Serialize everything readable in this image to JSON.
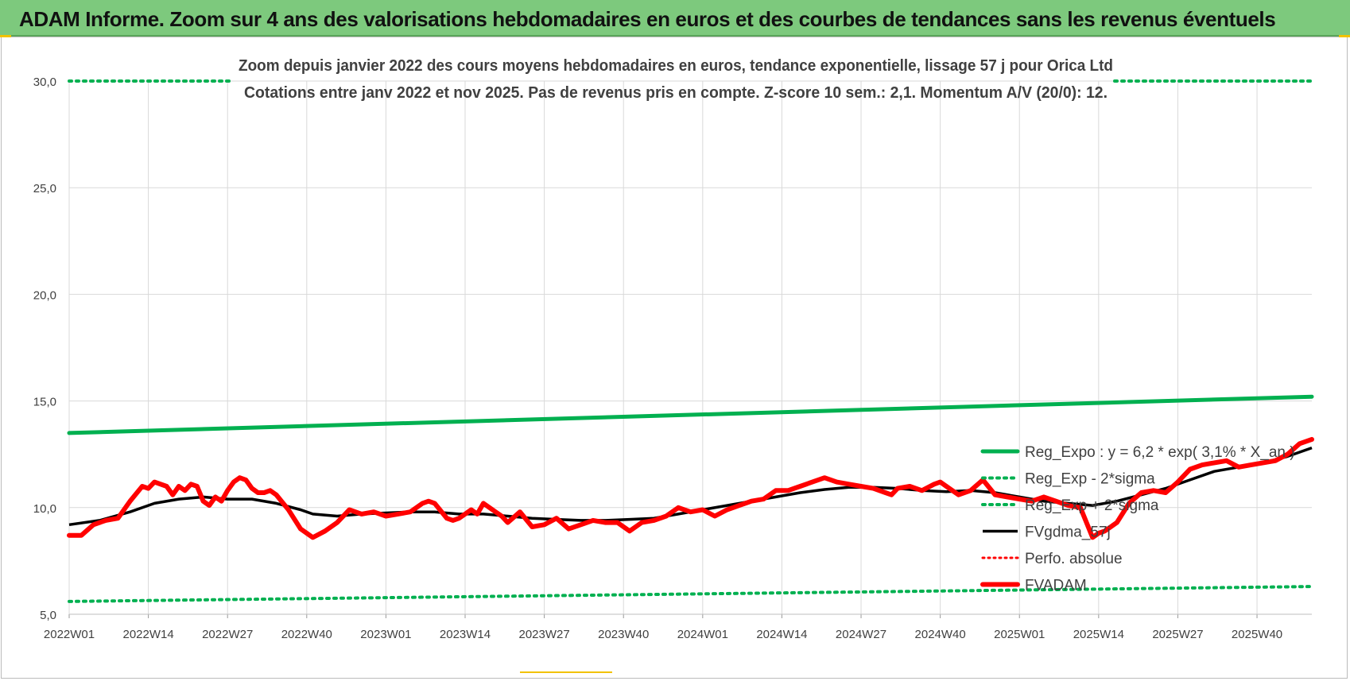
{
  "banner": {
    "title": "ADAM Informe. Zoom sur 4 ans des valorisations hebdomadaires en euros et des courbes de tendances sans les revenus éventuels"
  },
  "colors": {
    "banner_bg": "#7dc97d",
    "trend_green": "#00b050",
    "price_red": "#ff0000",
    "ma_black": "#000000",
    "grid": "#d9d9d9"
  },
  "chart_data": {
    "type": "line",
    "title_line1": "Zoom depuis janvier 2022 des cours moyens hebdomadaires en euros, tendance exponentielle, lissage 57 j pour Orica Ltd",
    "title_line2": "Cotations entre janv 2022 et nov 2025. Pas de revenus pris en compte. Z-score 10 sem.: 2,1. Momentum A/V (20/0): 12.",
    "xlabel": "",
    "ylabel": "",
    "ylim": [
      5,
      30
    ],
    "yticks": [
      "5,0",
      "10,0",
      "15,0",
      "20,0",
      "25,0",
      "30,0"
    ],
    "ytick_values": [
      5,
      10,
      15,
      20,
      25,
      30
    ],
    "xticks": [
      "2022W01",
      "2022W14",
      "2022W27",
      "2022W40",
      "2023W01",
      "2023W14",
      "2023W27",
      "2023W40",
      "2024W01",
      "2024W14",
      "2024W27",
      "2024W40",
      "2025W01",
      "2025W14",
      "2025W27",
      "2025W40"
    ],
    "xtick_weeks": [
      0,
      13,
      26,
      39,
      52,
      65,
      78,
      91,
      104,
      117,
      130,
      143,
      156,
      169,
      182,
      195
    ],
    "n_weeks": 205,
    "grid": true,
    "legend_position": "right",
    "series": [
      {
        "name": "Reg_Expo : y = 6,2 * exp( 3,1% * X_an )",
        "style": "solid-green",
        "x": [
          0,
          204
        ],
        "values": [
          13.5,
          15.2
        ]
      },
      {
        "name": "Reg_Exp - 2*sigma",
        "style": "dotted-green",
        "x": [
          0,
          204
        ],
        "values": [
          5.6,
          6.3
        ]
      },
      {
        "name": "Reg_Exp + 2*sigma",
        "style": "dotted-green",
        "x": [
          0,
          204
        ],
        "values": [
          30.0,
          30.0
        ]
      },
      {
        "name": "FVgdma_57j",
        "style": "solid-black",
        "x": [
          0,
          5,
          10,
          14,
          18,
          22,
          26,
          30,
          34,
          38,
          40,
          44,
          48,
          52,
          56,
          60,
          64,
          68,
          72,
          76,
          80,
          84,
          88,
          92,
          96,
          100,
          104,
          108,
          112,
          116,
          120,
          124,
          128,
          132,
          136,
          140,
          144,
          148,
          152,
          156,
          160,
          164,
          168,
          172,
          176,
          180,
          184,
          188,
          192,
          196,
          200,
          204
        ],
        "values": [
          9.2,
          9.4,
          9.8,
          10.2,
          10.4,
          10.5,
          10.4,
          10.4,
          10.2,
          9.9,
          9.7,
          9.6,
          9.7,
          9.75,
          9.8,
          9.8,
          9.7,
          9.7,
          9.6,
          9.5,
          9.45,
          9.4,
          9.4,
          9.45,
          9.5,
          9.7,
          9.9,
          10.1,
          10.3,
          10.5,
          10.7,
          10.85,
          10.95,
          10.95,
          10.9,
          10.8,
          10.75,
          10.8,
          10.7,
          10.5,
          10.3,
          10.2,
          10.1,
          10.3,
          10.6,
          10.9,
          11.3,
          11.7,
          11.9,
          12.1,
          12.4,
          12.8
        ]
      },
      {
        "name": "Perfo. absolue",
        "style": "dotted-red",
        "x": [],
        "values": []
      },
      {
        "name": "FVADAM",
        "style": "solid-red-thick",
        "x": [
          0,
          2,
          4,
          6,
          8,
          10,
          12,
          13,
          14,
          16,
          17,
          18,
          19,
          20,
          21,
          22,
          23,
          24,
          25,
          26,
          27,
          28,
          29,
          30,
          31,
          32,
          33,
          34,
          36,
          38,
          39,
          40,
          42,
          44,
          46,
          48,
          50,
          52,
          54,
          56,
          58,
          59,
          60,
          62,
          63,
          64,
          66,
          67,
          68,
          70,
          71,
          72,
          74,
          76,
          78,
          80,
          82,
          84,
          86,
          88,
          90,
          92,
          94,
          96,
          98,
          100,
          102,
          104,
          106,
          108,
          110,
          112,
          114,
          116,
          118,
          120,
          122,
          124,
          126,
          128,
          130,
          132,
          134,
          135,
          136,
          138,
          140,
          142,
          143,
          144,
          146,
          148,
          150,
          152,
          154,
          156,
          158,
          160,
          162,
          164,
          166,
          168,
          169,
          170,
          172,
          174,
          176,
          178,
          180,
          182,
          184,
          186,
          188,
          190,
          192,
          194,
          196,
          198,
          200,
          202,
          204
        ],
        "values": [
          8.7,
          8.7,
          9.2,
          9.4,
          9.5,
          10.3,
          11.0,
          10.9,
          11.2,
          11.0,
          10.6,
          11.0,
          10.8,
          11.1,
          11.0,
          10.3,
          10.1,
          10.5,
          10.3,
          10.8,
          11.2,
          11.4,
          11.3,
          10.9,
          10.7,
          10.7,
          10.8,
          10.6,
          9.9,
          9.0,
          8.8,
          8.6,
          8.9,
          9.3,
          9.9,
          9.7,
          9.8,
          9.6,
          9.7,
          9.8,
          10.2,
          10.3,
          10.2,
          9.5,
          9.4,
          9.5,
          9.9,
          9.7,
          10.2,
          9.8,
          9.6,
          9.3,
          9.8,
          9.1,
          9.2,
          9.5,
          9.0,
          9.2,
          9.4,
          9.3,
          9.3,
          8.9,
          9.3,
          9.4,
          9.6,
          10.0,
          9.8,
          9.9,
          9.6,
          9.9,
          10.1,
          10.3,
          10.4,
          10.8,
          10.8,
          11.0,
          11.2,
          11.4,
          11.2,
          11.1,
          11.0,
          10.9,
          10.7,
          10.6,
          10.9,
          11.0,
          10.8,
          11.1,
          11.2,
          11.0,
          10.6,
          10.8,
          11.3,
          10.6,
          10.5,
          10.4,
          10.3,
          10.5,
          10.3,
          10.1,
          10.0,
          8.6,
          8.8,
          8.9,
          9.3,
          10.2,
          10.7,
          10.8,
          10.7,
          11.2,
          11.8,
          12.0,
          12.1,
          12.2,
          11.9,
          12.0,
          12.1,
          12.2,
          12.5,
          13.0,
          13.2
        ]
      }
    ]
  }
}
